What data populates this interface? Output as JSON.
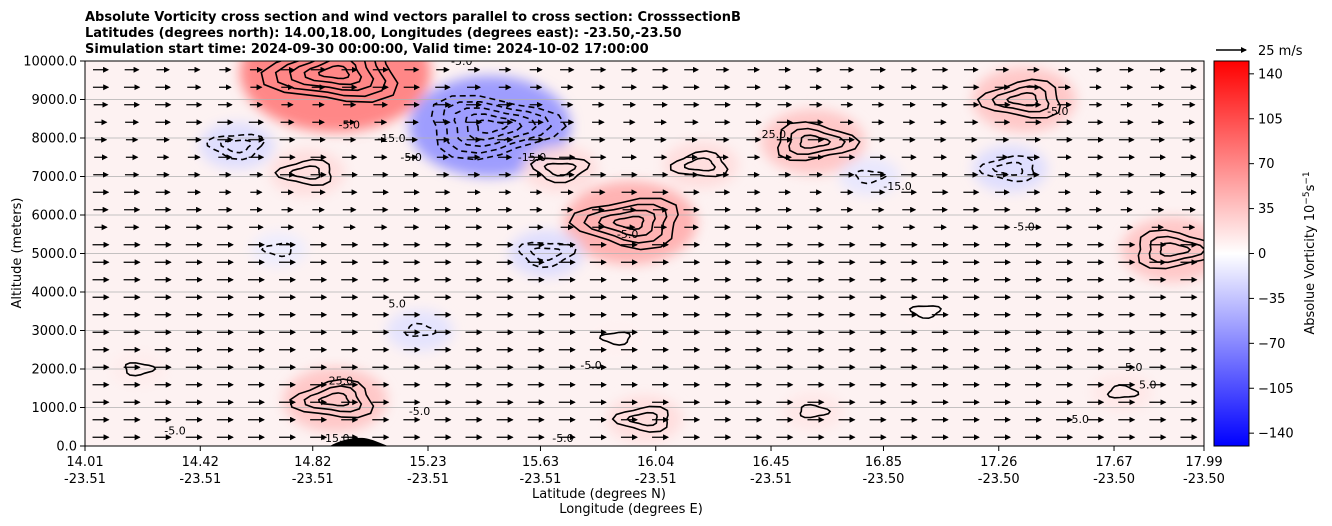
{
  "chart_data": {
    "type": "heatmap",
    "title_lines": [
      "Absolute Vorticity cross section and wind vectors parallel to cross section: CrosssectionB",
      "Latitudes (degrees north): 14.00,18.00, Longitudes (degrees east): -23.50,-23.50",
      "Simulation start time: 2024-09-30 00:00:00, Valid time: 2024-10-02 17:00:00"
    ],
    "ylabel": "Altitude (meters)",
    "xlabel_lines": [
      "Latitude (degrees N)",
      "Longitude (degrees E)"
    ],
    "ylim": [
      0,
      10000
    ],
    "yticks": [
      "0.0",
      "1000.0",
      "2000.0",
      "3000.0",
      "4000.0",
      "5000.0",
      "6000.0",
      "7000.0",
      "8000.0",
      "9000.0",
      "10000.0"
    ],
    "xlim": [
      14.01,
      17.99
    ],
    "xticks": [
      {
        "lat": "14.01",
        "lon": "-23.51"
      },
      {
        "lat": "14.42",
        "lon": "-23.51"
      },
      {
        "lat": "14.82",
        "lon": "-23.51"
      },
      {
        "lat": "15.23",
        "lon": "-23.51"
      },
      {
        "lat": "15.63",
        "lon": "-23.51"
      },
      {
        "lat": "16.04",
        "lon": "-23.51"
      },
      {
        "lat": "16.45",
        "lon": "-23.51"
      },
      {
        "lat": "16.85",
        "lon": "-23.50"
      },
      {
        "lat": "17.26",
        "lon": "-23.50"
      },
      {
        "lat": "17.67",
        "lon": "-23.50"
      },
      {
        "lat": "17.99",
        "lon": "-23.50"
      }
    ],
    "grid": "horizontal",
    "colorbar": {
      "label": "Absolue Vorticity 10$^{-5}$s$^{-1}$",
      "label_main": "Absolue Vorticity 10",
      "label_sup1": "−5",
      "label_mid": "s",
      "label_sup2": "−1",
      "range": [
        -150,
        150
      ],
      "ticks": [
        "140",
        "105",
        "70",
        "35",
        "0",
        "−35",
        "−70",
        "−105",
        "−140"
      ],
      "cmap": "bwr"
    },
    "quiver_key": "25 m/s",
    "contour_levels_labeled": [
      "-15.0",
      "-5.0",
      "5.0",
      "15.0",
      "25.0",
      "35.0",
      "45.0",
      "55.0"
    ],
    "vorticity_features": [
      {
        "lat": 14.9,
        "alt": 9700,
        "value": 55
      },
      {
        "lat": 15.45,
        "alt": 8300,
        "value": -45
      },
      {
        "lat": 15.95,
        "alt": 5800,
        "value": 35
      },
      {
        "lat": 16.6,
        "alt": 7900,
        "value": 25
      },
      {
        "lat": 17.35,
        "alt": 9000,
        "value": 25
      },
      {
        "lat": 17.88,
        "alt": 5100,
        "value": 25
      },
      {
        "lat": 15.7,
        "alt": 7200,
        "value": 15
      },
      {
        "lat": 16.2,
        "alt": 7300,
        "value": 15
      },
      {
        "lat": 14.8,
        "alt": 7100,
        "value": 15
      },
      {
        "lat": 15.65,
        "alt": 5000,
        "value": -15
      },
      {
        "lat": 17.3,
        "alt": 7200,
        "value": -15
      },
      {
        "lat": 14.55,
        "alt": 7800,
        "value": -15
      },
      {
        "lat": 16.8,
        "alt": 7000,
        "value": -10
      },
      {
        "lat": 14.7,
        "alt": 5100,
        "value": -8
      },
      {
        "lat": 15.2,
        "alt": 3000,
        "value": -12
      },
      {
        "lat": 14.9,
        "alt": 1200,
        "value": 25
      },
      {
        "lat": 16.0,
        "alt": 700,
        "value": 15
      },
      {
        "lat": 17.7,
        "alt": 1400,
        "value": 10
      },
      {
        "lat": 16.6,
        "alt": 900,
        "value": 10
      },
      {
        "lat": 14.2,
        "alt": 2000,
        "value": 8
      },
      {
        "lat": 15.9,
        "alt": 2800,
        "value": 6
      },
      {
        "lat": 17.0,
        "alt": 3500,
        "value": 5
      }
    ],
    "contour_labels": [
      {
        "text": "-5.0",
        "lat": 15.35,
        "alt": 9900
      },
      {
        "text": "-5.0",
        "lat": 14.95,
        "alt": 8250
      },
      {
        "text": "-15.0",
        "lat": 15.1,
        "alt": 7900
      },
      {
        "text": "-5.0",
        "lat": 15.17,
        "alt": 7400
      },
      {
        "text": "-15.0",
        "lat": 15.6,
        "alt": 7400
      },
      {
        "text": "-15.0",
        "lat": 16.9,
        "alt": 6650
      },
      {
        "text": "-5.0",
        "lat": 17.35,
        "alt": 5600
      },
      {
        "text": "-5.0",
        "lat": 15.94,
        "alt": 5400
      },
      {
        "text": "5.0",
        "lat": 15.12,
        "alt": 3600
      },
      {
        "text": "25.0",
        "lat": 14.92,
        "alt": 1600
      },
      {
        "text": "-5.0",
        "lat": 15.2,
        "alt": 800
      },
      {
        "text": "-5.0",
        "lat": 15.81,
        "alt": 2000
      },
      {
        "text": "-5.0",
        "lat": 14.33,
        "alt": 300
      },
      {
        "text": "-5.0",
        "lat": 15.71,
        "alt": 100
      },
      {
        "text": "25.0",
        "lat": 16.46,
        "alt": 8000
      },
      {
        "text": "5.0",
        "lat": 17.74,
        "alt": 1950
      },
      {
        "text": "5.0",
        "lat": 17.79,
        "alt": 1500
      },
      {
        "text": "5.0",
        "lat": 17.55,
        "alt": 600
      },
      {
        "text": "-5.0",
        "lat": 17.47,
        "alt": 8600
      },
      {
        "text": "15.0",
        "lat": 15.5,
        "alt": 10000
      },
      {
        "text": "-15.0",
        "lat": 14.9,
        "alt": 100
      }
    ]
  }
}
